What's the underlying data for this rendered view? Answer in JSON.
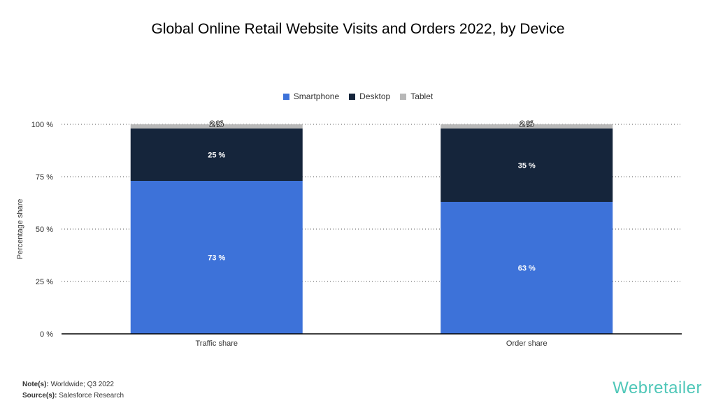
{
  "chart_data": {
    "type": "bar",
    "stacked": true,
    "title": "Global Online Retail Website Visits and Orders 2022, by Device",
    "xlabel": "",
    "ylabel": "Percentage share",
    "ylim": [
      0,
      100
    ],
    "yticks": [
      "0 %",
      "25 %",
      "50 %",
      "75 %",
      "100 %"
    ],
    "ytick_values": [
      0,
      25,
      50,
      75,
      100
    ],
    "grid": true,
    "legend_position": "top-center",
    "categories": [
      "Traffic share",
      "Order share"
    ],
    "series": [
      {
        "name": "Smartphone",
        "color": "#3d72d9",
        "values": [
          73,
          63
        ],
        "labels": [
          "73 %",
          "63 %"
        ]
      },
      {
        "name": "Desktop",
        "color": "#15253b",
        "values": [
          25,
          35
        ],
        "labels": [
          "25 %",
          "35 %"
        ]
      },
      {
        "name": "Tablet",
        "color": "#b8b8b8",
        "values": [
          2,
          2
        ],
        "labels": [
          "2 %",
          "2 %"
        ]
      }
    ]
  },
  "footer": {
    "note_label": "Note(s):",
    "note": "Worldwide; Q3 2022",
    "source_label": "Source(s):",
    "source": "Salesforce Research"
  },
  "logo": "Webretailer"
}
